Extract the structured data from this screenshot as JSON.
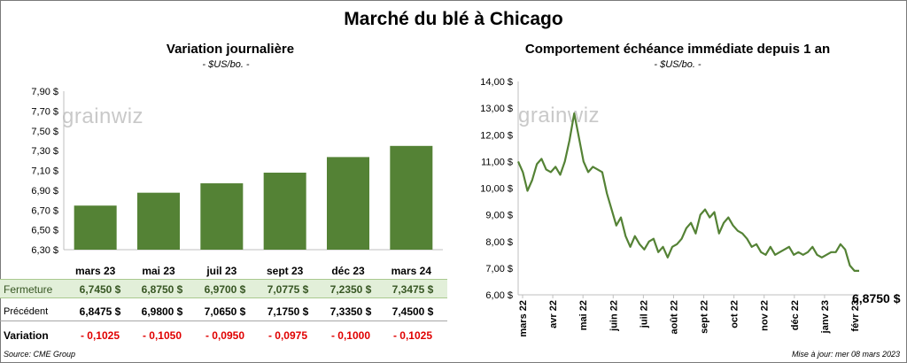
{
  "title": "Marché du blé à Chicago",
  "left_chart": {
    "subtitle": "Variation  journalière",
    "unit": "- $US/bo. -"
  },
  "right_chart": {
    "subtitle": "Comportement  échéance immédiate depuis 1 an",
    "unit": "- $US/bo. -",
    "last_value_label": "6,8750 $"
  },
  "watermark": "grainwiz",
  "table": {
    "close_label": "Fermeture",
    "prev_label": "Précédent",
    "var_label": "Variation",
    "close": [
      "6,7450  $",
      "6,8750  $",
      "6,9700  $",
      "7,0775  $",
      "7,2350  $",
      "7,3475  $"
    ],
    "prev": [
      "6,8475  $",
      "6,9800  $",
      "7,0650  $",
      "7,1750  $",
      "7,3350  $",
      "7,4500  $"
    ],
    "var": [
      "- 0,1025",
      "- 0,1050",
      "- 0,0950",
      "- 0,0975",
      "- 0,1000",
      "- 0,1025"
    ]
  },
  "footer": {
    "source": "Source: CME Group",
    "updated": "Mise à jour: mer 08 mars 2023"
  },
  "colors": {
    "bar": "#548235",
    "line": "#548235",
    "table_bg": "#e2efd9",
    "negative": "#e00000"
  },
  "chart_data": [
    {
      "type": "bar",
      "title": "Variation  journalière",
      "categories": [
        "mars 23",
        "mai 23",
        "juil 23",
        "sept 23",
        "déc 23",
        "mars 24"
      ],
      "values": [
        6.745,
        6.875,
        6.97,
        7.0775,
        7.235,
        7.3475
      ],
      "ylim": [
        6.3,
        7.9
      ],
      "yticks": [
        "6,30 $",
        "6,50 $",
        "6,70 $",
        "6,90 $",
        "7,10 $",
        "7,30 $",
        "7,50 $",
        "7,70 $",
        "7,90 $"
      ],
      "grid": false
    },
    {
      "type": "line",
      "title": "Comportement  échéance immédiate depuis 1 an",
      "xlabels": [
        "mars 22",
        "avr 22",
        "mai 22",
        "juin 22",
        "juil 22",
        "août 22",
        "sept 22",
        "oct 22",
        "nov 22",
        "déc 22",
        "janv 23",
        "févr 23"
      ],
      "ylim": [
        6.0,
        14.0
      ],
      "yticks": [
        "6,00 $",
        "7,00 $",
        "8,00 $",
        "9,00 $",
        "10,00 $",
        "11,00 $",
        "12,00 $",
        "13,00 $",
        "14,00 $"
      ],
      "values": [
        11.0,
        10.6,
        9.9,
        10.3,
        10.9,
        11.1,
        10.7,
        10.6,
        10.8,
        10.5,
        11.0,
        11.8,
        12.8,
        11.9,
        11.0,
        10.6,
        10.8,
        10.7,
        10.6,
        9.8,
        9.2,
        8.6,
        8.9,
        8.2,
        7.8,
        8.2,
        7.9,
        7.7,
        8.0,
        8.1,
        7.6,
        7.8,
        7.4,
        7.8,
        7.9,
        8.1,
        8.5,
        8.7,
        8.3,
        9.0,
        9.2,
        8.9,
        9.1,
        8.3,
        8.7,
        8.9,
        8.6,
        8.4,
        8.3,
        8.1,
        7.8,
        7.9,
        7.6,
        7.5,
        7.8,
        7.5,
        7.6,
        7.7,
        7.8,
        7.5,
        7.6,
        7.5,
        7.6,
        7.8,
        7.5,
        7.4,
        7.5,
        7.6,
        7.6,
        7.9,
        7.7,
        7.1,
        6.9,
        6.9
      ],
      "grid": false
    }
  ]
}
